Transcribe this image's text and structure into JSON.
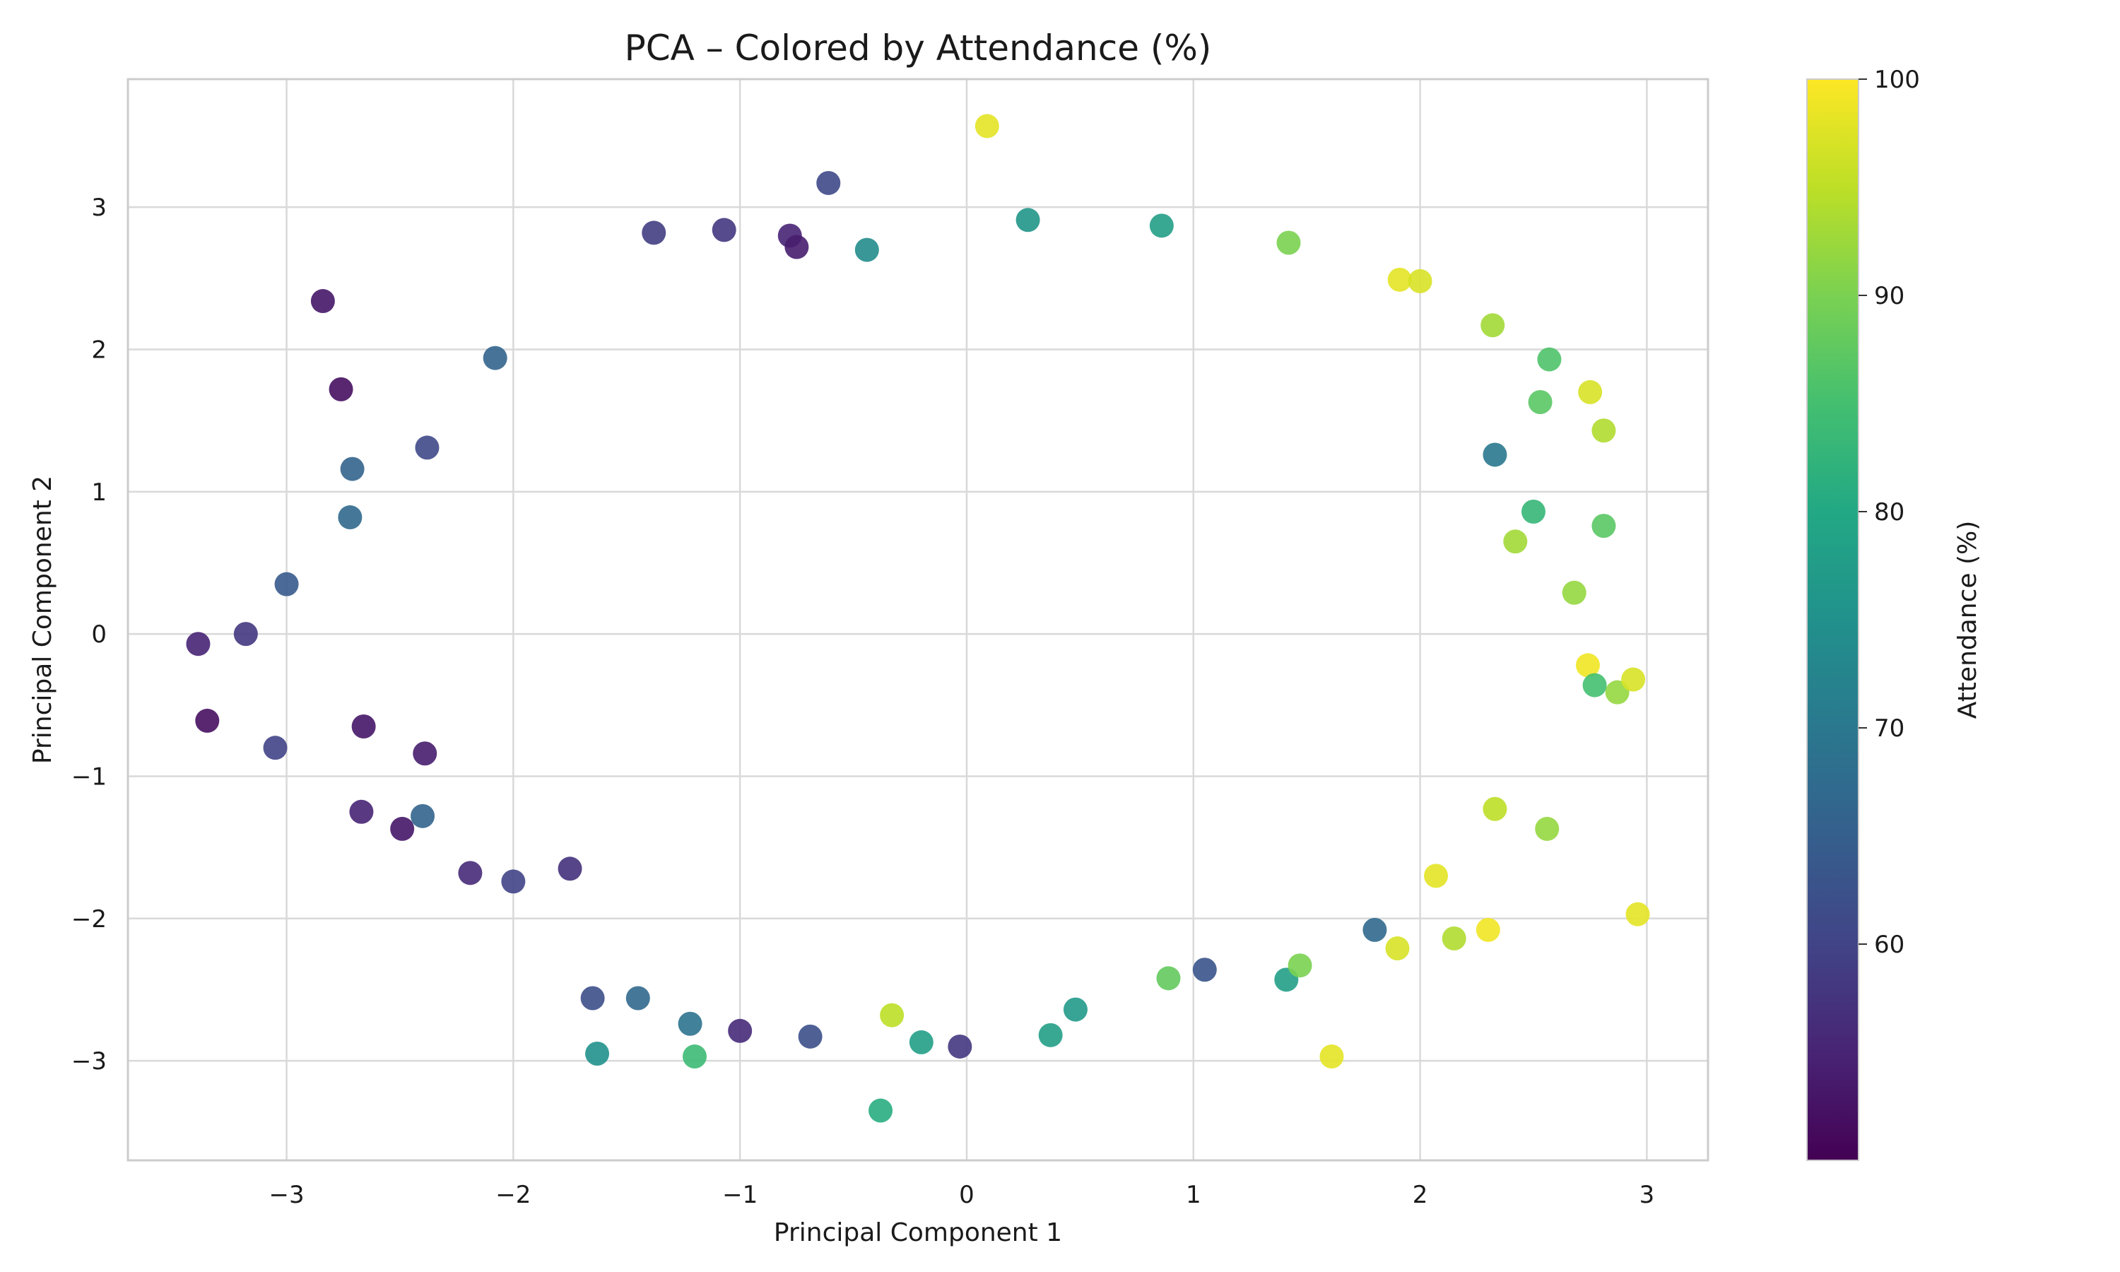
{
  "chart_data": {
    "type": "scatter",
    "title": "PCA – Colored by Attendance (%)",
    "xlabel": "Principal Component 1",
    "ylabel": "Principal Component 2",
    "xlim": [
      -3.7,
      3.27
    ],
    "ylim": [
      -3.7,
      3.9
    ],
    "xticks": [
      -3,
      -2,
      -1,
      0,
      1,
      2,
      3
    ],
    "yticks": [
      -3,
      -2,
      -1,
      0,
      1,
      2,
      3
    ],
    "grid": true,
    "colorbar": {
      "label": "Attendance (%)",
      "colormap": "viridis",
      "range": [
        50,
        100
      ],
      "ticks": [
        60,
        70,
        80,
        90,
        100
      ]
    },
    "points": [
      {
        "x": 0.09,
        "y": 3.57,
        "c": 98
      },
      {
        "x": -0.61,
        "y": 3.17,
        "c": 61
      },
      {
        "x": -2.84,
        "y": 2.34,
        "c": 53
      },
      {
        "x": -2.76,
        "y": 1.72,
        "c": 52
      },
      {
        "x": -3.39,
        "y": -0.07,
        "c": 55
      },
      {
        "x": -3.35,
        "y": -0.61,
        "c": 52
      },
      {
        "x": -3.18,
        "y": 0.0,
        "c": 58
      },
      {
        "x": -3.05,
        "y": -0.8,
        "c": 60
      },
      {
        "x": -3.0,
        "y": 0.35,
        "c": 64
      },
      {
        "x": -2.71,
        "y": 1.16,
        "c": 66
      },
      {
        "x": -2.72,
        "y": 0.82,
        "c": 67
      },
      {
        "x": -2.66,
        "y": -0.65,
        "c": 53
      },
      {
        "x": -2.67,
        "y": -1.25,
        "c": 55
      },
      {
        "x": -2.49,
        "y": -1.37,
        "c": 53
      },
      {
        "x": -2.4,
        "y": -1.28,
        "c": 66
      },
      {
        "x": -2.38,
        "y": 1.31,
        "c": 61
      },
      {
        "x": -2.39,
        "y": -0.84,
        "c": 54
      },
      {
        "x": -2.19,
        "y": -1.68,
        "c": 56
      },
      {
        "x": -2.08,
        "y": 1.94,
        "c": 66
      },
      {
        "x": -2.0,
        "y": -1.74,
        "c": 60
      },
      {
        "x": -1.75,
        "y": -1.65,
        "c": 57
      },
      {
        "x": -1.65,
        "y": -2.56,
        "c": 62
      },
      {
        "x": -1.63,
        "y": -2.95,
        "c": 75
      },
      {
        "x": -1.45,
        "y": -2.56,
        "c": 67
      },
      {
        "x": -1.38,
        "y": 2.82,
        "c": 59
      },
      {
        "x": -1.22,
        "y": -2.74,
        "c": 69
      },
      {
        "x": -1.2,
        "y": -2.97,
        "c": 84
      },
      {
        "x": -1.0,
        "y": -2.79,
        "c": 56
      },
      {
        "x": -1.07,
        "y": 2.84,
        "c": 58
      },
      {
        "x": -0.78,
        "y": 2.8,
        "c": 55
      },
      {
        "x": -0.75,
        "y": 2.72,
        "c": 54
      },
      {
        "x": -0.69,
        "y": -2.83,
        "c": 62
      },
      {
        "x": -0.44,
        "y": 2.7,
        "c": 74
      },
      {
        "x": -0.38,
        "y": -3.35,
        "c": 81
      },
      {
        "x": -0.33,
        "y": -2.68,
        "c": 95
      },
      {
        "x": -0.2,
        "y": -2.87,
        "c": 78
      },
      {
        "x": -0.03,
        "y": -2.9,
        "c": 58
      },
      {
        "x": 0.27,
        "y": 2.91,
        "c": 76
      },
      {
        "x": 0.37,
        "y": -2.82,
        "c": 78
      },
      {
        "x": 0.48,
        "y": -2.64,
        "c": 77
      },
      {
        "x": 0.86,
        "y": 2.87,
        "c": 78
      },
      {
        "x": 1.42,
        "y": 2.75,
        "c": 90
      },
      {
        "x": 1.61,
        "y": -2.97,
        "c": 98
      },
      {
        "x": 1.91,
        "y": 2.49,
        "c": 98
      },
      {
        "x": 2.0,
        "y": 2.48,
        "c": 97
      },
      {
        "x": 2.32,
        "y": 2.17,
        "c": 93
      },
      {
        "x": 2.57,
        "y": 1.93,
        "c": 86
      },
      {
        "x": 2.75,
        "y": 1.7,
        "c": 97
      },
      {
        "x": 2.81,
        "y": 1.43,
        "c": 94
      },
      {
        "x": 2.81,
        "y": 0.76,
        "c": 87
      },
      {
        "x": 2.68,
        "y": 0.29,
        "c": 92
      },
      {
        "x": 2.74,
        "y": -0.22,
        "c": 99
      },
      {
        "x": 2.87,
        "y": -0.41,
        "c": 92
      },
      {
        "x": 2.94,
        "y": -0.32,
        "c": 97
      },
      {
        "x": 2.96,
        "y": -1.97,
        "c": 98
      },
      {
        "x": 2.56,
        "y": -1.37,
        "c": 92
      },
      {
        "x": 2.77,
        "y": -0.36,
        "c": 85
      },
      {
        "x": 2.33,
        "y": -1.23,
        "c": 95
      },
      {
        "x": 2.3,
        "y": -2.08,
        "c": 99
      },
      {
        "x": 2.15,
        "y": -2.14,
        "c": 94
      },
      {
        "x": 2.07,
        "y": -1.7,
        "c": 98
      },
      {
        "x": 1.9,
        "y": -2.21,
        "c": 97
      },
      {
        "x": 1.8,
        "y": -2.08,
        "c": 67
      },
      {
        "x": 1.41,
        "y": -2.43,
        "c": 78
      },
      {
        "x": 1.47,
        "y": -2.33,
        "c": 90
      },
      {
        "x": 1.05,
        "y": -2.36,
        "c": 63
      },
      {
        "x": 0.89,
        "y": -2.42,
        "c": 88
      },
      {
        "x": 2.42,
        "y": 0.65,
        "c": 93
      },
      {
        "x": 2.5,
        "y": 0.86,
        "c": 83
      },
      {
        "x": 2.33,
        "y": 1.26,
        "c": 70
      },
      {
        "x": 2.53,
        "y": 1.63,
        "c": 87
      }
    ]
  }
}
